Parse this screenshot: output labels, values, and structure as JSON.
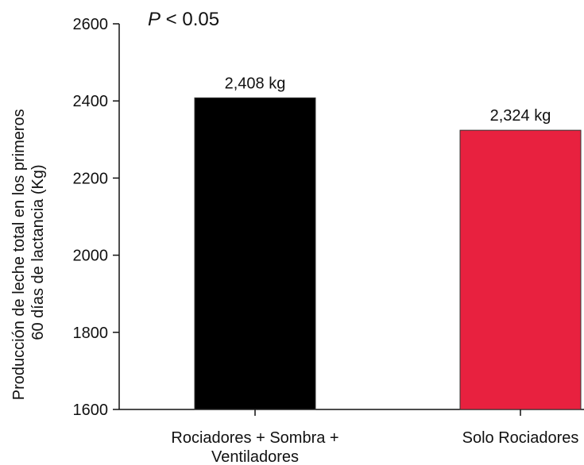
{
  "chart_data": {
    "type": "bar",
    "categories": [
      [
        "Rociadores + Sombra +",
        "Ventiladores"
      ],
      [
        "Solo Rociadores"
      ]
    ],
    "values": [
      2408,
      2324
    ],
    "data_labels": [
      "2,408 kg",
      "2,324 kg"
    ],
    "colors": [
      "#000000",
      "#e8213f"
    ],
    "ylabel": [
      "Producción de leche total en los primeros",
      "60 días de lactancia (Kg)"
    ],
    "xlabel": "",
    "ylim": [
      1600,
      2600
    ],
    "yticks": [
      1600,
      1800,
      2000,
      2200,
      2400,
      2600
    ],
    "annotation": {
      "italic": "P",
      "rest": " < 0.05"
    },
    "grid": false,
    "legend": "none"
  }
}
